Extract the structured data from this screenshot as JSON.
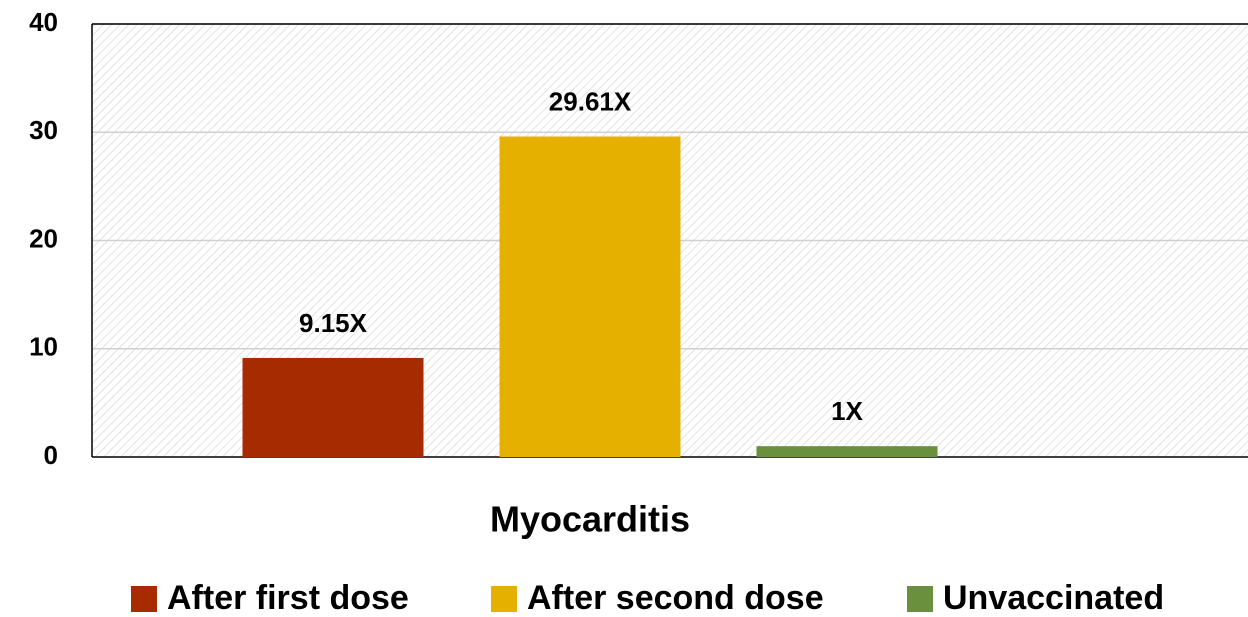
{
  "chart_data": {
    "type": "bar",
    "categories": [
      "Myocarditis"
    ],
    "series": [
      {
        "name": "After first dose",
        "color": "#a62c00",
        "values": [
          9.15
        ],
        "value_labels": [
          "9.15X"
        ]
      },
      {
        "name": "After second dose",
        "color": "#e6b000",
        "values": [
          29.61
        ],
        "value_labels": [
          "29.61X"
        ]
      },
      {
        "name": "Unvaccinated",
        "color": "#6a8f3d",
        "values": [
          1
        ],
        "value_labels": [
          "1X"
        ]
      }
    ],
    "ylim": [
      0,
      40
    ],
    "yticks": [
      0,
      10,
      20,
      30,
      40
    ],
    "grid": true,
    "legend": "bottom"
  }
}
